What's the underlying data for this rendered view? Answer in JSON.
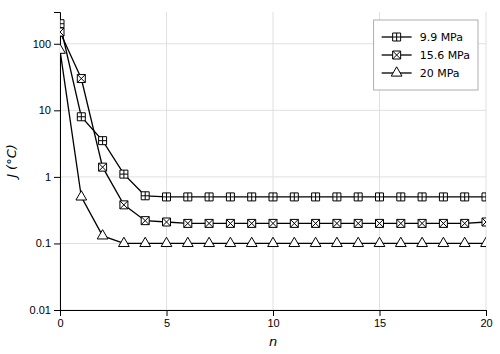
{
  "chart_data": {
    "type": "line",
    "xlabel": "n",
    "ylabel": "J (°C)",
    "x": [
      0,
      1,
      2,
      3,
      4,
      5,
      6,
      7,
      8,
      9,
      10,
      11,
      12,
      13,
      14,
      15,
      16,
      17,
      18,
      19,
      20
    ],
    "xlim": [
      0,
      20
    ],
    "xticks": [
      0,
      5,
      10,
      15,
      20
    ],
    "ylim": [
      0.01,
      300
    ],
    "yticks": [
      0.01,
      0.1,
      1,
      10,
      100
    ],
    "log": "y",
    "grid": true,
    "legend": "upper right",
    "series": [
      {
        "name": "9.9 MPa",
        "color": "#000000",
        "marker": "boxplus",
        "values": [
          200,
          8.0,
          3.5,
          1.1,
          0.52,
          0.5,
          0.5,
          0.5,
          0.5,
          0.5,
          0.5,
          0.5,
          0.5,
          0.5,
          0.5,
          0.5,
          0.5,
          0.5,
          0.5,
          0.5,
          0.5
        ]
      },
      {
        "name": "15.6 MPa",
        "color": "#000000",
        "marker": "boxtimes",
        "values": [
          150,
          30.0,
          1.4,
          0.38,
          0.22,
          0.21,
          0.2,
          0.2,
          0.2,
          0.2,
          0.2,
          0.2,
          0.2,
          0.2,
          0.2,
          0.2,
          0.2,
          0.2,
          0.2,
          0.2,
          0.21
        ]
      },
      {
        "name": "20 MPa",
        "color": "#000000",
        "marker": "triangle",
        "values": [
          80,
          0.5,
          0.13,
          0.1,
          0.1,
          0.1,
          0.1,
          0.1,
          0.1,
          0.1,
          0.1,
          0.1,
          0.1,
          0.1,
          0.1,
          0.1,
          0.1,
          0.1,
          0.1,
          0.1,
          0.1
        ]
      }
    ]
  }
}
